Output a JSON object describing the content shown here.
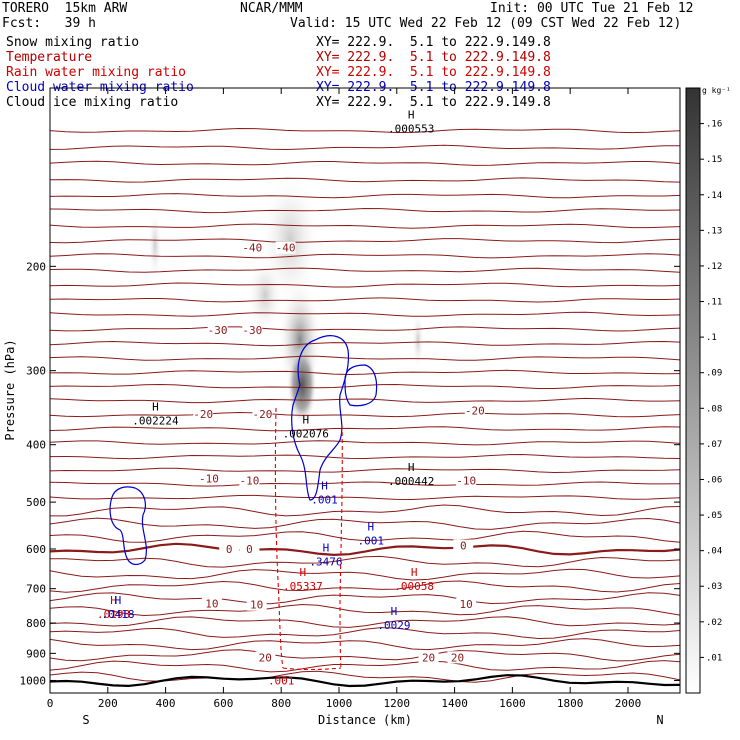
{
  "header": {
    "model": "TORERO  15km ARW",
    "center": "NCAR/MMM",
    "init": "Init: 00 UTC Tue 21 Feb 12",
    "fcst": "Fcst:   39 h",
    "valid": "Valid: 15 UTC Wed 22 Feb 12 (09 CST Wed 22 Feb 12)"
  },
  "fields": [
    {
      "name": "Snow mixing ratio",
      "xy": "",
      "color": "#000000"
    },
    {
      "name": "Temperature",
      "xy": "XY= 222.9.  5.1 to 222.9.149.8",
      "color": "#b00000"
    },
    {
      "name": "Rain water mixing ratio",
      "xy": "XY= 222.9.  5.1 to 222.9.149.8",
      "color": "#d00000"
    },
    {
      "name": "Cloud water mixing ratio",
      "xy": "XY= 222.9.  5.1 to 222.9.149.8",
      "color": "#0000c0"
    },
    {
      "name": "Cloud ice mixing ratio",
      "xy": "XY= 222.9.  5.1 to 222.9.149.8",
      "color": "#000000"
    }
  ],
  "first_xy": "XY= 222.9.  5.1 to 222.9.149.8",
  "colorbar": {
    "unit": "g kg⁻¹",
    "ticks": [
      ".01",
      ".02",
      ".03",
      ".04",
      ".05",
      ".06",
      ".07",
      ".08",
      ".09",
      ".1",
      ".11",
      ".12",
      ".13",
      ".14",
      ".15",
      ".16"
    ]
  },
  "chart_data": {
    "type": "cross-section contour",
    "xlabel": "Distance (km)",
    "ylabel": "Pressure (hPa)",
    "xlim": [
      0,
      2180
    ],
    "ylim": [
      1050,
      100
    ],
    "y_scale": "log",
    "x_ticks": [
      0,
      200,
      400,
      600,
      800,
      1000,
      1200,
      1400,
      1600,
      1800,
      2000
    ],
    "y_ticks": [
      200,
      300,
      400,
      500,
      600,
      700,
      800,
      900,
      1000
    ],
    "endpoints": {
      "left": "S",
      "right": "N"
    },
    "temperature_labels": [
      {
        "value": "-40",
        "x": 700,
        "p": 186
      },
      {
        "value": "-40",
        "x": 815,
        "p": 186
      },
      {
        "value": "-30",
        "x": 580,
        "p": 256
      },
      {
        "value": "-30",
        "x": 700,
        "p": 256
      },
      {
        "value": "-20",
        "x": 530,
        "p": 355
      },
      {
        "value": "-20",
        "x": 735,
        "p": 355
      },
      {
        "value": "-20",
        "x": 1470,
        "p": 350
      },
      {
        "value": "-10",
        "x": 550,
        "p": 456
      },
      {
        "value": "-10",
        "x": 690,
        "p": 460
      },
      {
        "value": "-10",
        "x": 1440,
        "p": 460
      },
      {
        "value": "0",
        "x": 620,
        "p": 600
      },
      {
        "value": "0",
        "x": 690,
        "p": 600
      },
      {
        "value": "0",
        "x": 1430,
        "p": 592
      },
      {
        "value": "10",
        "x": 560,
        "p": 742
      },
      {
        "value": "10",
        "x": 715,
        "p": 745
      },
      {
        "value": "10",
        "x": 1440,
        "p": 743
      },
      {
        "value": "20",
        "x": 745,
        "p": 914
      },
      {
        "value": "20",
        "x": 1310,
        "p": 914
      },
      {
        "value": "20",
        "x": 1410,
        "p": 914
      }
    ],
    "maxima": [
      {
        "value": ".002224",
        "x": 365,
        "p": 364,
        "field": "snow"
      },
      {
        "value": ".002076",
        "x": 885,
        "p": 383,
        "field": "snow"
      },
      {
        "value": ".000442",
        "x": 1250,
        "p": 461,
        "field": "snow"
      },
      {
        "value": ".000553",
        "x": 1250,
        "p": 117,
        "field": "cloud ice"
      },
      {
        "value": ".05337",
        "x": 875,
        "p": 693,
        "field": "rain"
      },
      {
        "value": ".00058",
        "x": 1260,
        "p": 693,
        "field": "rain"
      },
      {
        "value": ".0198",
        "x": 220,
        "p": 772,
        "field": "rain"
      },
      {
        "value": ".001",
        "x": 800,
        "p": 1001,
        "field": "rain"
      },
      {
        "value": ".001",
        "x": 950,
        "p": 495,
        "field": "cloud water"
      },
      {
        "value": ".001",
        "x": 1110,
        "p": 581,
        "field": "cloud water"
      },
      {
        "value": ".3476",
        "x": 955,
        "p": 630,
        "field": "cloud water"
      },
      {
        "value": ".0029",
        "x": 1190,
        "p": 806,
        "field": "cloud water"
      },
      {
        "value": ".0418",
        "x": 235,
        "p": 772,
        "field": "cloud water"
      }
    ]
  }
}
